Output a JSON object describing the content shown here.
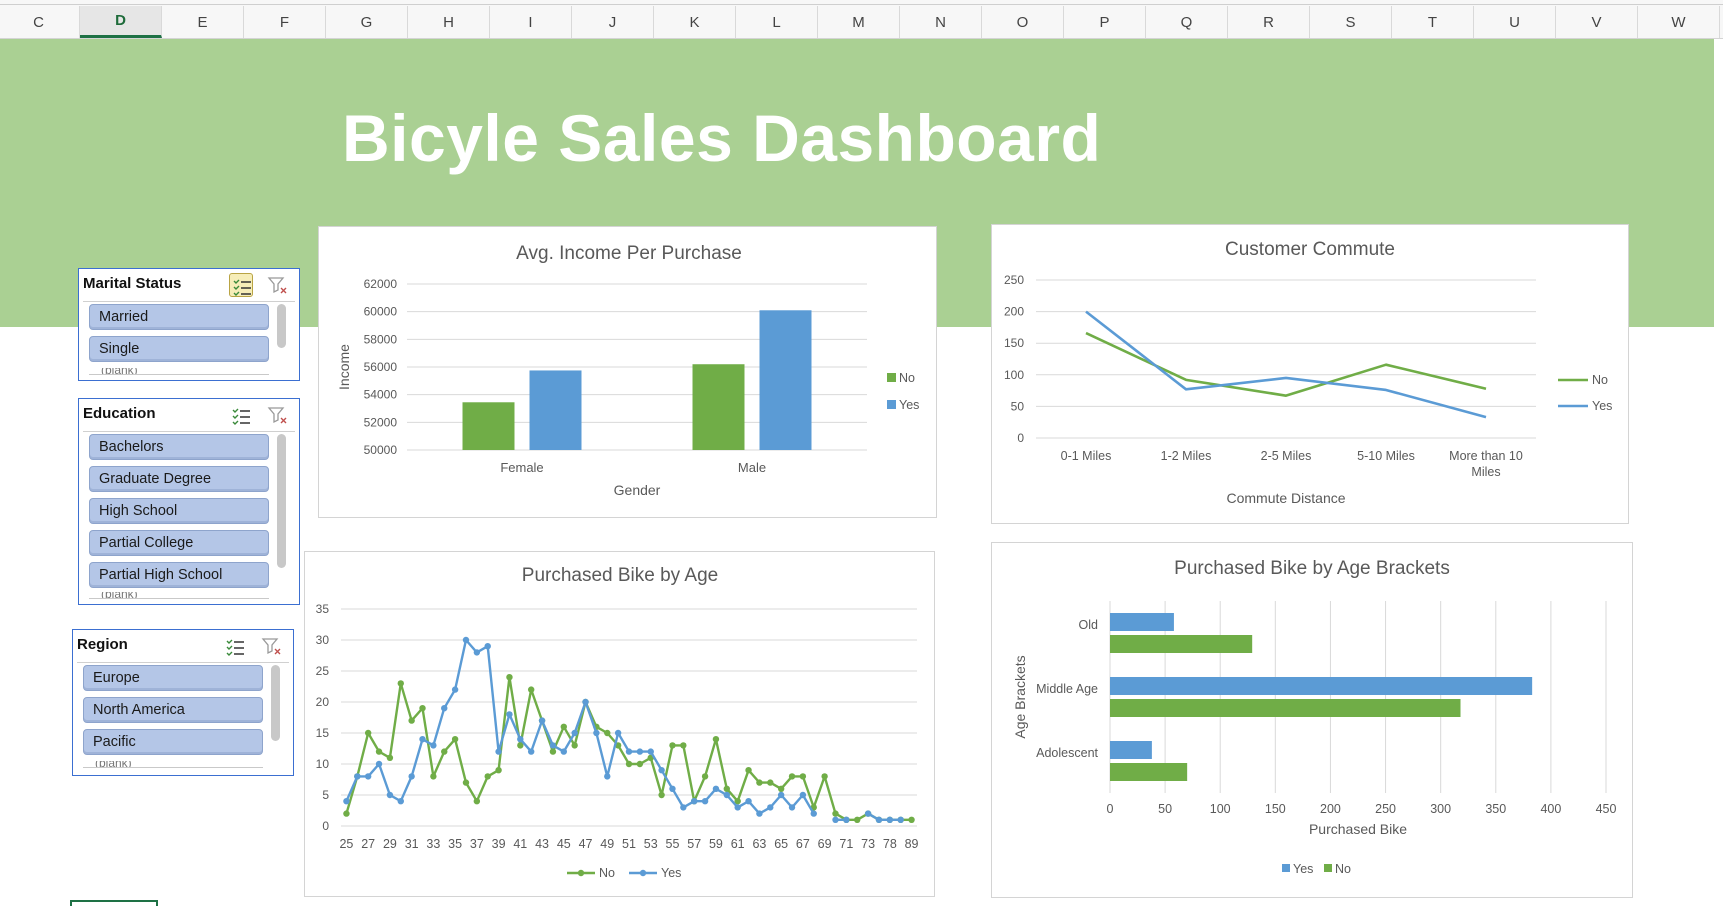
{
  "spreadsheet": {
    "columns": [
      "C",
      "D",
      "E",
      "F",
      "G",
      "H",
      "I",
      "J",
      "K",
      "L",
      "M",
      "N",
      "O",
      "P",
      "Q",
      "R",
      "S",
      "T",
      "U",
      "V",
      "W"
    ],
    "active_column": "D"
  },
  "dashboard": {
    "title": "Bicyle Sales Dashboard",
    "banner_color": "#aad093",
    "title_color": "#ffffff"
  },
  "slicers": {
    "marital": {
      "title": "Marital Status",
      "items": [
        "Married",
        "Single"
      ],
      "cut_item": "(blank)"
    },
    "education": {
      "title": "Education",
      "items": [
        "Bachelors",
        "Graduate Degree",
        "High School",
        "Partial College",
        "Partial High School"
      ],
      "cut_item": "(blank)"
    },
    "region": {
      "title": "Region",
      "items": [
        "Europe",
        "North America",
        "Pacific"
      ],
      "cut_item": "(blank)"
    }
  },
  "colors": {
    "no": "#70ad47",
    "yes": "#5b9bd5",
    "slicer_item": "#b4c6e7"
  },
  "chart_data": [
    {
      "id": "income",
      "type": "bar",
      "title": "Avg. Income Per Purchase",
      "xlabel": "Gender",
      "ylabel": "Income",
      "categories": [
        "Female",
        "Male"
      ],
      "series": [
        {
          "name": "No",
          "values": [
            53450,
            56200
          ]
        },
        {
          "name": "Yes",
          "values": [
            55750,
            60100
          ]
        }
      ],
      "ylim": [
        50000,
        62000
      ],
      "yticks": [
        "50000",
        "52000",
        "54000",
        "56000",
        "58000",
        "60000",
        "62000"
      ],
      "legend": "right",
      "grid": true
    },
    {
      "id": "commute",
      "type": "line",
      "title": "Customer Commute",
      "xlabel": "Commute Distance",
      "ylabel": "",
      "categories": [
        "0-1 Miles",
        "1-2 Miles",
        "2-5 Miles",
        "5-10 Miles",
        "More than 10 Miles"
      ],
      "series": [
        {
          "name": "No",
          "values": [
            166,
            92,
            67,
            116,
            78
          ]
        },
        {
          "name": "Yes",
          "values": [
            200,
            77,
            95,
            76,
            33
          ]
        }
      ],
      "ylim": [
        0,
        250
      ],
      "yticks": [
        "0",
        "50",
        "100",
        "150",
        "200",
        "250"
      ],
      "legend": "right",
      "grid": true
    },
    {
      "id": "age",
      "type": "line",
      "title": "Purchased Bike by Age",
      "xlabel": "",
      "ylabel": "",
      "x": [
        25,
        26,
        27,
        28,
        29,
        30,
        31,
        32,
        33,
        34,
        35,
        36,
        37,
        38,
        39,
        40,
        41,
        42,
        43,
        44,
        45,
        46,
        47,
        48,
        49,
        50,
        51,
        52,
        53,
        54,
        55,
        56,
        57,
        58,
        59,
        60,
        61,
        62,
        63,
        64,
        65,
        66,
        67,
        68,
        69,
        70,
        71,
        72,
        73,
        74,
        78,
        80,
        89
      ],
      "xtick_labels": [
        "25",
        "27",
        "29",
        "31",
        "33",
        "35",
        "37",
        "39",
        "41",
        "43",
        "45",
        "47",
        "49",
        "51",
        "53",
        "55",
        "57",
        "59",
        "61",
        "63",
        "65",
        "67",
        "69",
        "71",
        "73",
        "78",
        "89"
      ],
      "series": [
        {
          "name": "No",
          "values": [
            2,
            8,
            15,
            12,
            11,
            23,
            17,
            19,
            8,
            12,
            14,
            7,
            4,
            8,
            9,
            24,
            13,
            22,
            17,
            12,
            16,
            13,
            20,
            16,
            15,
            13,
            10,
            10,
            11,
            5,
            13,
            13,
            4,
            8,
            14,
            6,
            4,
            9,
            7,
            7,
            6,
            8,
            8,
            3,
            8,
            2,
            1,
            1,
            2,
            1,
            1,
            1,
            1
          ]
        },
        {
          "name": "Yes",
          "values": [
            4,
            8,
            8,
            10,
            5,
            4,
            8,
            14,
            13,
            19,
            22,
            30,
            28,
            29,
            12,
            18,
            14,
            12,
            17,
            13,
            12,
            15,
            20,
            15,
            8,
            15,
            12,
            12,
            12,
            9,
            6,
            3,
            4,
            4,
            6,
            5,
            3,
            4,
            2,
            3,
            5,
            3,
            5,
            2,
            null,
            1,
            1,
            null,
            2,
            1,
            1,
            1,
            null
          ]
        }
      ],
      "ylim": [
        0,
        35
      ],
      "yticks": [
        "0",
        "5",
        "10",
        "15",
        "20",
        "25",
        "30",
        "35"
      ],
      "legend": "bottom",
      "grid": true
    },
    {
      "id": "brackets",
      "type": "bar",
      "orientation": "horizontal",
      "title": "Purchased Bike by Age Brackets",
      "xlabel": "Purchased Bike",
      "ylabel": "Age Brackets",
      "categories": [
        "Old",
        "Middle Age",
        "Adolescent"
      ],
      "series": [
        {
          "name": "Yes",
          "values": [
            58,
            383,
            38
          ]
        },
        {
          "name": "No",
          "values": [
            129,
            318,
            70
          ]
        }
      ],
      "xlim": [
        0,
        450
      ],
      "xticks": [
        "0",
        "50",
        "100",
        "150",
        "200",
        "250",
        "300",
        "350",
        "400",
        "450"
      ],
      "legend": "bottom",
      "grid": true
    }
  ]
}
